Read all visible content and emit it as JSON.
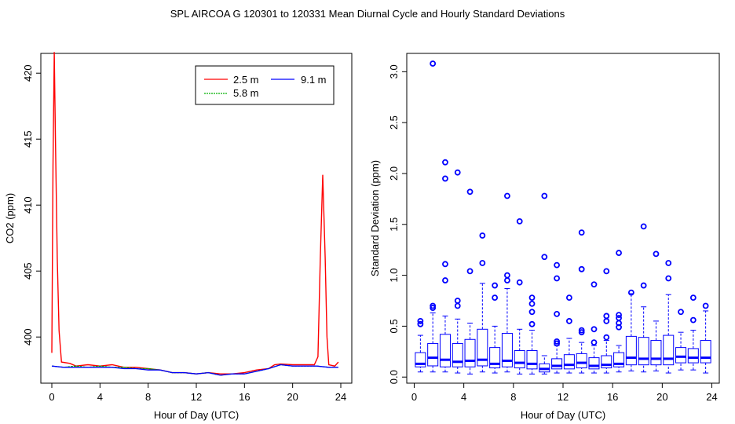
{
  "title": "SPL   AIRCOA G   120301 to 120331   Mean Diurnal Cycle and Hourly Standard Deviations",
  "colors": {
    "red": "#ff0000",
    "green": "#00b000",
    "blue": "#0000ff",
    "axis": "#000000"
  },
  "chart_data": [
    {
      "type": "line",
      "xlabel": "Hour of Day (UTC)",
      "ylabel": "CO2 (ppm)",
      "xlim": [
        0,
        24
      ],
      "ylim": [
        396.5,
        421.5
      ],
      "xticks": [
        0,
        4,
        8,
        12,
        16,
        20,
        24
      ],
      "xtick_labels": [
        "0",
        "4",
        "8",
        "12",
        "16",
        "20",
        "24"
      ],
      "yticks": [
        400,
        405,
        410,
        415,
        420
      ],
      "ytick_labels": [
        "400",
        "405",
        "410",
        "415",
        "420"
      ],
      "legend": {
        "placement": "top-right",
        "entries": [
          "2.5 m",
          "5.8 m",
          "9.1 m"
        ]
      },
      "series": [
        {
          "name": "2.5 m",
          "color": "#ff0000",
          "points": [
            [
              0.0,
              398.8
            ],
            [
              0.1,
              413.0
            ],
            [
              0.2,
              421.6
            ],
            [
              0.3,
              415.0
            ],
            [
              0.45,
              406.0
            ],
            [
              0.6,
              400.5
            ],
            [
              0.8,
              398.1
            ],
            [
              1.5,
              398.0
            ],
            [
              2.0,
              397.8
            ],
            [
              3.0,
              397.9
            ],
            [
              4.0,
              397.8
            ],
            [
              5.0,
              397.9
            ],
            [
              6.0,
              397.7
            ],
            [
              7.0,
              397.7
            ],
            [
              8.0,
              397.6
            ],
            [
              9.0,
              397.5
            ],
            [
              10.0,
              397.3
            ],
            [
              11.0,
              397.3
            ],
            [
              12.0,
              397.2
            ],
            [
              13.0,
              397.3
            ],
            [
              14.0,
              397.2
            ],
            [
              15.0,
              397.2
            ],
            [
              16.0,
              397.3
            ],
            [
              17.0,
              397.5
            ],
            [
              18.0,
              397.6
            ],
            [
              18.5,
              397.9
            ],
            [
              19.0,
              397.95
            ],
            [
              20.0,
              397.9
            ],
            [
              21.0,
              397.9
            ],
            [
              21.8,
              397.9
            ],
            [
              22.1,
              398.5
            ],
            [
              22.3,
              406.0
            ],
            [
              22.5,
              412.3
            ],
            [
              22.7,
              406.0
            ],
            [
              22.85,
              400.0
            ],
            [
              23.0,
              397.9
            ],
            [
              23.5,
              397.8
            ],
            [
              23.8,
              398.1
            ]
          ]
        },
        {
          "name": "5.8 m",
          "color": "#00b000",
          "points": [
            [
              0.0,
              397.8
            ],
            [
              1.0,
              397.7
            ],
            [
              2.0,
              397.8
            ],
            [
              3.0,
              397.7
            ],
            [
              4.0,
              397.8
            ],
            [
              5.0,
              397.7
            ],
            [
              6.0,
              397.7
            ],
            [
              7.0,
              397.6
            ],
            [
              8.0,
              397.6
            ],
            [
              9.0,
              397.5
            ],
            [
              10.0,
              397.3
            ],
            [
              11.0,
              397.3
            ],
            [
              12.0,
              397.2
            ],
            [
              13.0,
              397.3
            ],
            [
              14.0,
              397.1
            ],
            [
              15.0,
              397.2
            ],
            [
              16.0,
              397.2
            ],
            [
              17.0,
              397.4
            ],
            [
              18.0,
              397.6
            ],
            [
              19.0,
              397.9
            ],
            [
              20.0,
              397.8
            ],
            [
              21.0,
              397.8
            ],
            [
              22.0,
              397.8
            ],
            [
              23.0,
              397.7
            ],
            [
              23.8,
              397.7
            ]
          ]
        },
        {
          "name": "9.1 m",
          "color": "#0000ff",
          "points": [
            [
              0.0,
              397.8
            ],
            [
              1.0,
              397.7
            ],
            [
              2.0,
              397.7
            ],
            [
              3.0,
              397.7
            ],
            [
              4.0,
              397.7
            ],
            [
              5.0,
              397.7
            ],
            [
              6.0,
              397.6
            ],
            [
              7.0,
              397.6
            ],
            [
              8.0,
              397.5
            ],
            [
              9.0,
              397.5
            ],
            [
              10.0,
              397.3
            ],
            [
              11.0,
              397.3
            ],
            [
              12.0,
              397.2
            ],
            [
              13.0,
              397.3
            ],
            [
              14.0,
              397.1
            ],
            [
              15.0,
              397.2
            ],
            [
              16.0,
              397.2
            ],
            [
              17.0,
              397.4
            ],
            [
              18.0,
              397.6
            ],
            [
              19.0,
              397.9
            ],
            [
              20.0,
              397.8
            ],
            [
              21.0,
              397.8
            ],
            [
              22.0,
              397.8
            ],
            [
              23.0,
              397.7
            ],
            [
              23.8,
              397.7
            ]
          ]
        }
      ]
    },
    {
      "type": "box",
      "xlabel": "Hour of Day (UTC)",
      "ylabel": "Standard Deviation (ppm)",
      "xlim": [
        -0.6,
        24.6
      ],
      "ylim": [
        -0.06,
        3.18
      ],
      "xticks": [
        0,
        4,
        8,
        12,
        16,
        20,
        24
      ],
      "xtick_labels": [
        "0",
        "4",
        "8",
        "12",
        "16",
        "20",
        "24"
      ],
      "yticks": [
        0,
        0.5,
        1,
        1.5,
        2,
        2.5,
        3
      ],
      "ytick_labels": [
        "0.0",
        "0.5",
        "1.0",
        "1.5",
        "2.0",
        "2.5",
        "3.0"
      ],
      "color": "#0000ff",
      "boxes": [
        {
          "hour": 0.5,
          "min": 0.05,
          "q1": 0.1,
          "median": 0.13,
          "q3": 0.24,
          "max": 0.41,
          "outliers": [
            0.52,
            0.55
          ]
        },
        {
          "hour": 1.5,
          "min": 0.05,
          "q1": 0.11,
          "median": 0.19,
          "q3": 0.33,
          "max": 0.63,
          "outliers": [
            0.68,
            0.7,
            3.08
          ]
        },
        {
          "hour": 2.5,
          "min": 0.05,
          "q1": 0.1,
          "median": 0.17,
          "q3": 0.42,
          "max": 0.6,
          "outliers": [
            0.95,
            1.11,
            1.95,
            2.11
          ]
        },
        {
          "hour": 3.5,
          "min": 0.04,
          "q1": 0.1,
          "median": 0.15,
          "q3": 0.33,
          "max": 0.57,
          "outliers": [
            0.7,
            0.75,
            2.01
          ]
        },
        {
          "hour": 4.5,
          "min": 0.03,
          "q1": 0.1,
          "median": 0.16,
          "q3": 0.37,
          "max": 0.53,
          "outliers": [
            1.04,
            1.82
          ]
        },
        {
          "hour": 5.5,
          "min": 0.05,
          "q1": 0.11,
          "median": 0.17,
          "q3": 0.47,
          "max": 0.92,
          "outliers": [
            1.12,
            1.39
          ]
        },
        {
          "hour": 6.5,
          "min": 0.04,
          "q1": 0.09,
          "median": 0.13,
          "q3": 0.29,
          "max": 0.5,
          "outliers": [
            0.78,
            0.9
          ]
        },
        {
          "hour": 7.5,
          "min": 0.05,
          "q1": 0.1,
          "median": 0.16,
          "q3": 0.43,
          "max": 0.87,
          "outliers": [
            0.95,
            1.0,
            1.78
          ]
        },
        {
          "hour": 8.5,
          "min": 0.03,
          "q1": 0.09,
          "median": 0.14,
          "q3": 0.26,
          "max": 0.47,
          "outliers": [
            0.93,
            1.53
          ]
        },
        {
          "hour": 9.5,
          "min": 0.03,
          "q1": 0.08,
          "median": 0.13,
          "q3": 0.26,
          "max": 0.46,
          "outliers": [
            0.52,
            0.64,
            0.72,
            0.78
          ]
        },
        {
          "hour": 10.5,
          "min": 0.03,
          "q1": 0.05,
          "median": 0.08,
          "q3": 0.13,
          "max": 0.21,
          "outliers": [
            1.18,
            1.78
          ]
        },
        {
          "hour": 11.5,
          "min": 0.04,
          "q1": 0.08,
          "median": 0.11,
          "q3": 0.18,
          "max": 0.31,
          "outliers": [
            0.33,
            0.35,
            0.62,
            0.97,
            1.1
          ]
        },
        {
          "hour": 12.5,
          "min": 0.04,
          "q1": 0.08,
          "median": 0.12,
          "q3": 0.22,
          "max": 0.38,
          "outliers": [
            0.55,
            0.78
          ]
        },
        {
          "hour": 13.5,
          "min": 0.04,
          "q1": 0.09,
          "median": 0.14,
          "q3": 0.23,
          "max": 0.34,
          "outliers": [
            0.44,
            0.46,
            1.06,
            1.42
          ]
        },
        {
          "hour": 14.5,
          "min": 0.04,
          "q1": 0.08,
          "median": 0.11,
          "q3": 0.19,
          "max": 0.31,
          "outliers": [
            0.34,
            0.47,
            0.91
          ]
        },
        {
          "hour": 15.5,
          "min": 0.04,
          "q1": 0.09,
          "median": 0.12,
          "q3": 0.21,
          "max": 0.36,
          "outliers": [
            0.39,
            0.55,
            0.6,
            1.04
          ]
        },
        {
          "hour": 16.5,
          "min": 0.05,
          "q1": 0.1,
          "median": 0.13,
          "q3": 0.24,
          "max": 0.31,
          "outliers": [
            0.49,
            0.53,
            0.58,
            0.61,
            1.22
          ]
        },
        {
          "hour": 17.5,
          "min": 0.06,
          "q1": 0.12,
          "median": 0.19,
          "q3": 0.4,
          "max": 0.82,
          "outliers": [
            0.83
          ]
        },
        {
          "hour": 18.5,
          "min": 0.05,
          "q1": 0.12,
          "median": 0.18,
          "q3": 0.39,
          "max": 0.69,
          "outliers": [
            0.9,
            1.48
          ]
        },
        {
          "hour": 19.5,
          "min": 0.06,
          "q1": 0.12,
          "median": 0.18,
          "q3": 0.36,
          "max": 0.55,
          "outliers": [
            1.21
          ]
        },
        {
          "hour": 20.5,
          "min": 0.04,
          "q1": 0.12,
          "median": 0.18,
          "q3": 0.41,
          "max": 0.81,
          "outliers": [
            0.97,
            1.12
          ]
        },
        {
          "hour": 21.5,
          "min": 0.07,
          "q1": 0.14,
          "median": 0.2,
          "q3": 0.29,
          "max": 0.44,
          "outliers": [
            0.64
          ]
        },
        {
          "hour": 22.5,
          "min": 0.07,
          "q1": 0.14,
          "median": 0.19,
          "q3": 0.28,
          "max": 0.46,
          "outliers": [
            0.56,
            0.78
          ]
        },
        {
          "hour": 23.5,
          "min": 0.04,
          "q1": 0.14,
          "median": 0.19,
          "q3": 0.36,
          "max": 0.65,
          "outliers": [
            0.7
          ]
        }
      ]
    }
  ]
}
